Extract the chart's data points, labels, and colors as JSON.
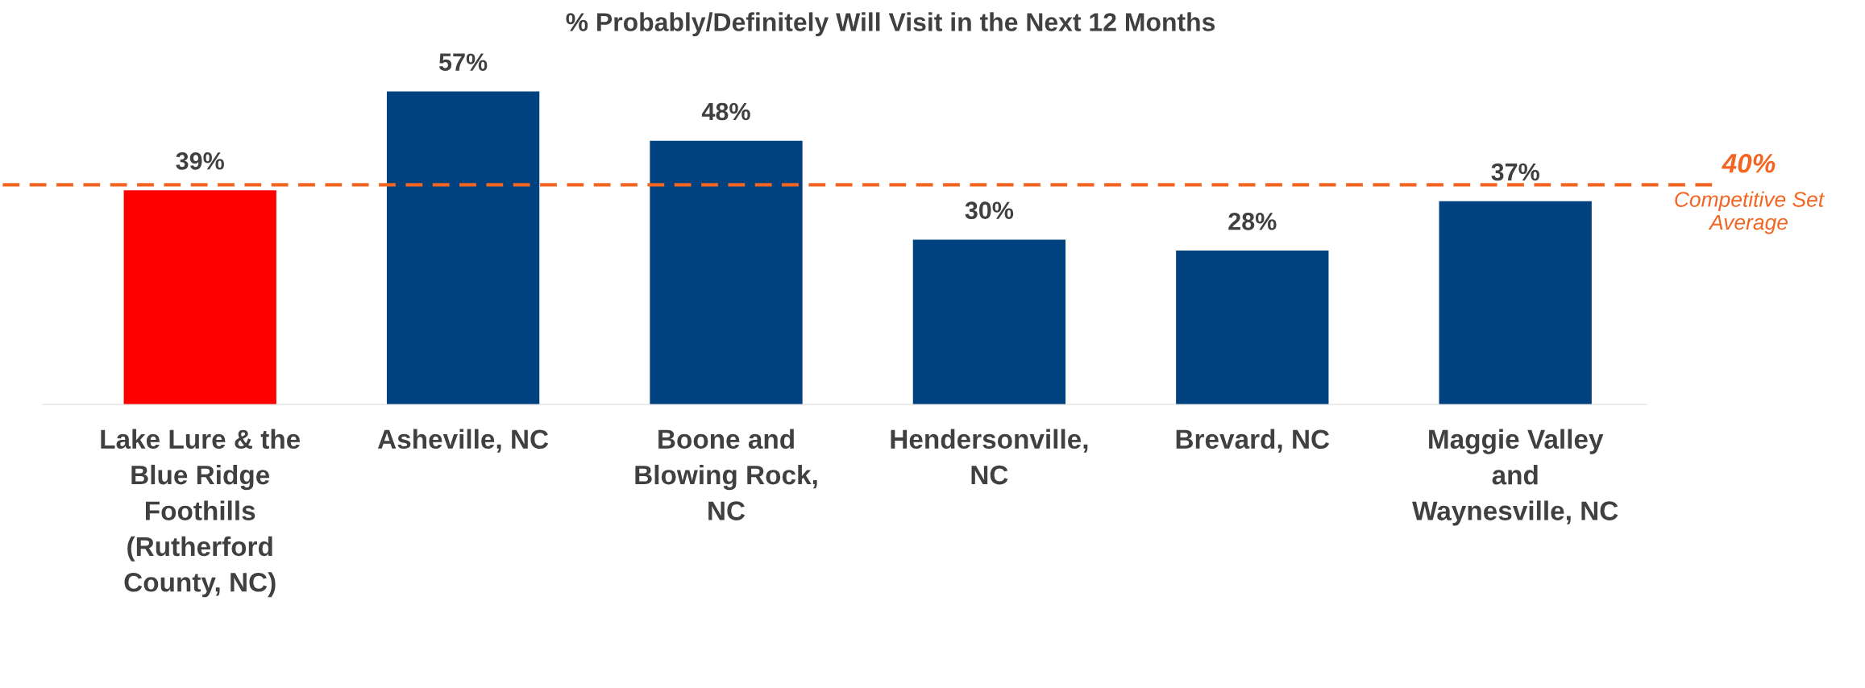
{
  "chart_data": {
    "type": "bar",
    "title": "% Probably/Definitely Will Visit in the Next 12 Months",
    "categories": [
      "Lake Lure & the\nBlue Ridge\nFoothills\n(Rutherford\nCounty, NC)",
      "Asheville, NC",
      "Boone and\nBlowing Rock,\nNC",
      "Hendersonville,\nNC",
      "Brevard, NC",
      "Maggie Valley\nand\nWaynesville, NC"
    ],
    "values": [
      39,
      57,
      48,
      30,
      28,
      37
    ],
    "colors": [
      "#ff0000",
      "#00427f",
      "#00427f",
      "#00427f",
      "#00427f",
      "#00427f"
    ],
    "value_labels": [
      "39%",
      "57%",
      "48%",
      "30%",
      "28%",
      "37%"
    ],
    "tick_labels": "x",
    "grid": false,
    "ref_lines": [
      {
        "axis": "y",
        "value": 40,
        "label": "40%",
        "color": "#f26522",
        "line_style": "dashed"
      }
    ],
    "annotations": [
      "Competitive Set Average"
    ]
  }
}
